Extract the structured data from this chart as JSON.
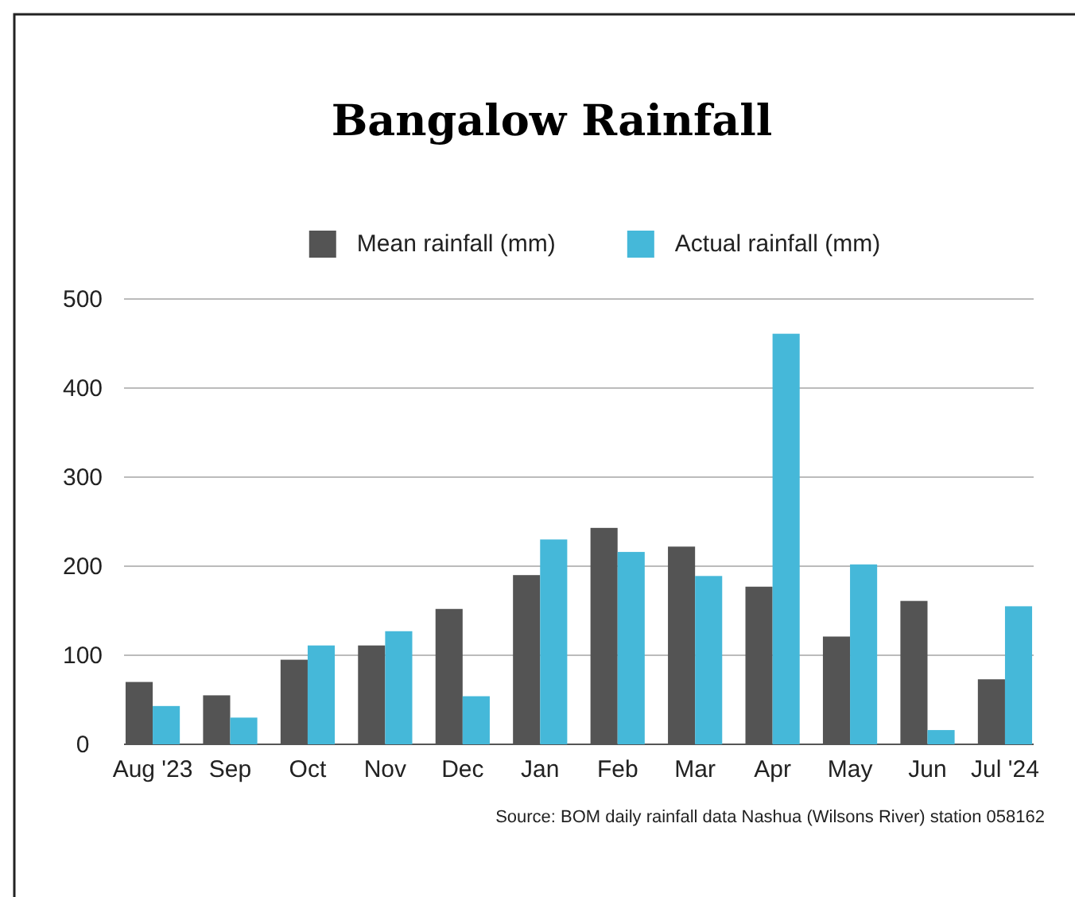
{
  "chart_data": {
    "type": "bar",
    "title": "Bangalow Rainfall",
    "categories": [
      "Aug '23",
      "Sep",
      "Oct",
      "Nov",
      "Dec",
      "Jan",
      "Feb",
      "Mar",
      "Apr",
      "May",
      "Jun",
      "Jul '24"
    ],
    "series": [
      {
        "name": "Mean rainfall (mm)",
        "color": "#545454",
        "values": [
          70,
          55,
          95,
          111,
          152,
          190,
          243,
          222,
          177,
          121,
          161,
          73
        ]
      },
      {
        "name": "Actual rainfall (mm)",
        "color": "#45b8d9",
        "values": [
          43,
          30,
          111,
          127,
          54,
          230,
          216,
          189,
          461,
          202,
          16,
          155
        ]
      }
    ],
    "ylim": [
      0,
      500
    ],
    "yticks": [
      0,
      100,
      200,
      300,
      400,
      500
    ],
    "grid": "y",
    "legend": "top",
    "annotations": [
      "Source: BOM daily rainfall data Nashua (Wilsons River) station 058162"
    ]
  }
}
